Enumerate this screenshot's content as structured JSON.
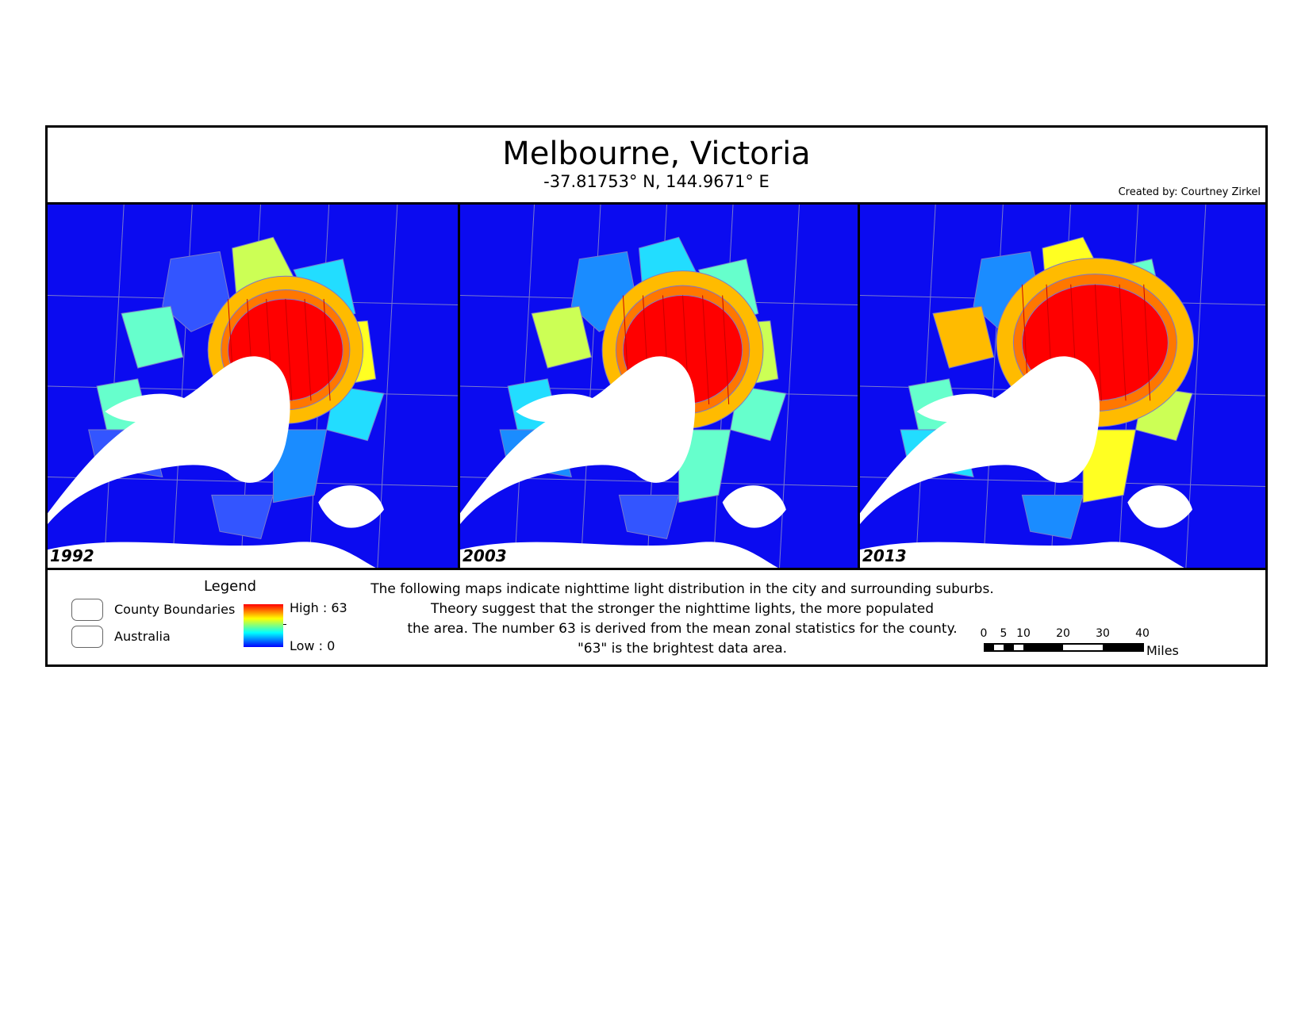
{
  "title": "Melbourne, Victoria",
  "coordinates": "-37.81753° N, 144.9671° E",
  "credit": "Created by: Courtney Zirkel",
  "colors": {
    "background": "#0b0bf0",
    "water": "#ffffff",
    "low": "#0000ff",
    "high": "#ff0000",
    "boundary": "#7a7acc"
  },
  "panels": [
    {
      "year": "1992"
    },
    {
      "year": "2003"
    },
    {
      "year": "2013"
    }
  ],
  "legend": {
    "title": "Legend",
    "items": [
      {
        "label": "County Boundaries"
      },
      {
        "label": "Australia"
      }
    ],
    "ramp_high": "High : 63",
    "ramp_low": "Low : 0"
  },
  "description": [
    "The following maps indicate nighttime light distribution in the city and surrounding suburbs.",
    "Theory suggest that the stronger the nighttime lights, the more populated",
    "the area.  The number 63 is derived from the mean zonal statistics for the county.",
    "\"63\" is the brightest data area."
  ],
  "scale_bar": {
    "ticks": [
      "0",
      "5",
      "10",
      "20",
      "30",
      "40"
    ],
    "unit": "Miles"
  }
}
